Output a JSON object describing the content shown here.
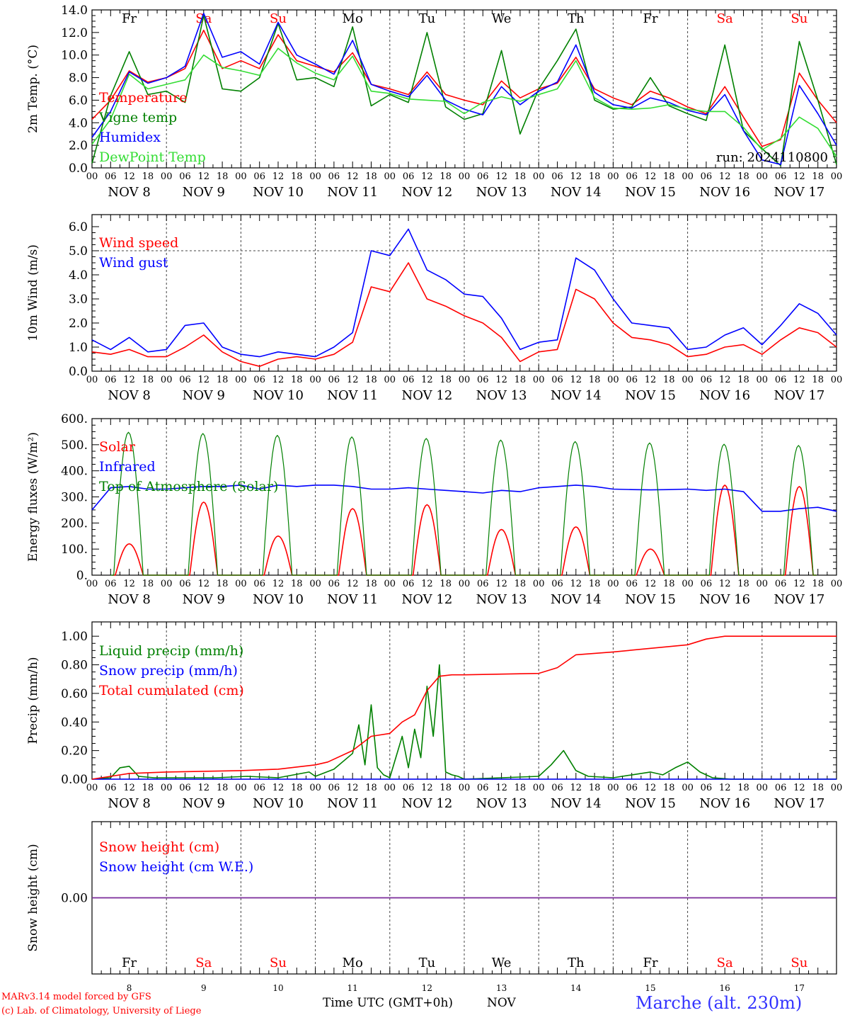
{
  "colors": {
    "red": "#ff0000",
    "darkgreen": "#008000",
    "blue": "#0000ff",
    "lightgreen": "#33dd33",
    "grid": "#444444",
    "axis": "#000000",
    "snowline": "#7a2a9a"
  },
  "time_axis": {
    "hour_labels": [
      "00",
      "06",
      "12",
      "18"
    ],
    "day_labels": [
      "NOV  8",
      "NOV  9",
      "NOV 10",
      "NOV 11",
      "NOV 12",
      "NOV 13",
      "NOV 14",
      "NOV 15",
      "NOV 16",
      "NOV 17"
    ],
    "weekdays": [
      "Fr",
      "Sa",
      "Su",
      "Mo",
      "Tu",
      "We",
      "Th",
      "Fr",
      "Sa",
      "Su"
    ],
    "weekend": [
      false,
      true,
      true,
      false,
      false,
      false,
      false,
      false,
      true,
      true
    ],
    "day_numbers": [
      "8",
      "9",
      "10",
      "11",
      "12",
      "13",
      "14",
      "15",
      "16",
      "17"
    ],
    "xlabel": "Time UTC (GMT+0h)",
    "month": "NOV"
  },
  "chart_data": [
    {
      "type": "line",
      "ylabel": "2m Temp. (°C)",
      "ylim": [
        0,
        14
      ],
      "yticks": [
        "0.0",
        "2.0",
        "4.0",
        "6.0",
        "8.0",
        "10.0",
        "12.0",
        "14.0"
      ],
      "show_weekdays": true,
      "run_label": "run: 2024110800",
      "series": [
        {
          "name": "Temperature",
          "color": "red",
          "hours": [
            0,
            6,
            12,
            18,
            24,
            30,
            36,
            42,
            48,
            54,
            60,
            66,
            72,
            78,
            84,
            90,
            96,
            102,
            108,
            114,
            120,
            126,
            132,
            138,
            144,
            150,
            156,
            162,
            168,
            174,
            180,
            186,
            192,
            198,
            204,
            210,
            216,
            222,
            228,
            234,
            240
          ],
          "values": [
            4.3,
            6.0,
            8.6,
            7.6,
            8.0,
            8.8,
            12.2,
            8.8,
            9.5,
            8.8,
            11.8,
            9.5,
            9.0,
            8.5,
            10.2,
            7.4,
            7.0,
            6.5,
            8.5,
            6.5,
            6.0,
            5.6,
            7.7,
            6.2,
            7.0,
            7.5,
            9.8,
            7.0,
            6.2,
            5.6,
            6.8,
            6.2,
            5.4,
            4.8,
            7.2,
            4.5,
            1.9,
            2.5,
            8.4,
            6.0,
            4.0
          ]
        },
        {
          "name": "Vigne temp",
          "color": "darkgreen",
          "hours": [
            0,
            6,
            12,
            18,
            24,
            30,
            36,
            42,
            48,
            54,
            60,
            66,
            72,
            78,
            84,
            90,
            96,
            102,
            108,
            114,
            120,
            126,
            132,
            138,
            144,
            150,
            156,
            162,
            168,
            174,
            180,
            186,
            192,
            198,
            204,
            210,
            216,
            222,
            228,
            234,
            240
          ],
          "values": [
            0.4,
            6.4,
            10.3,
            6.5,
            6.8,
            5.8,
            13.5,
            7.0,
            6.8,
            8.0,
            12.8,
            7.8,
            8.0,
            7.2,
            12.5,
            5.5,
            6.5,
            5.8,
            12.0,
            5.4,
            4.3,
            4.8,
            10.4,
            3.0,
            7.0,
            9.5,
            12.3,
            6.0,
            5.2,
            5.4,
            8.0,
            5.5,
            4.8,
            4.2,
            10.9,
            3.3,
            1.7,
            0.2,
            11.2,
            6.0,
            0.3
          ]
        },
        {
          "name": "Humidex",
          "color": "blue",
          "hours": [
            0,
            6,
            12,
            18,
            24,
            30,
            36,
            42,
            48,
            54,
            60,
            66,
            72,
            78,
            84,
            90,
            96,
            102,
            108,
            114,
            120,
            126,
            132,
            138,
            144,
            150,
            156,
            162,
            168,
            174,
            180,
            186,
            192,
            198,
            204,
            210,
            216,
            222,
            228,
            234,
            240
          ],
          "values": [
            2.7,
            5.0,
            8.5,
            7.5,
            8.0,
            9.0,
            13.7,
            9.8,
            10.3,
            9.2,
            12.9,
            10.0,
            9.2,
            8.3,
            11.3,
            7.4,
            6.8,
            6.3,
            8.2,
            6.0,
            5.2,
            4.7,
            7.2,
            5.6,
            6.8,
            7.6,
            10.9,
            6.7,
            5.6,
            5.3,
            6.2,
            5.8,
            5.1,
            4.7,
            6.5,
            3.3,
            0.7,
            0.3,
            7.3,
            4.8,
            2.0
          ]
        },
        {
          "name": "DewPoint Temp",
          "color": "lightgreen",
          "hours": [
            0,
            6,
            12,
            18,
            24,
            30,
            36,
            42,
            48,
            54,
            60,
            66,
            72,
            78,
            84,
            90,
            96,
            102,
            108,
            114,
            120,
            126,
            132,
            138,
            144,
            150,
            156,
            162,
            168,
            174,
            180,
            186,
            192,
            198,
            204,
            210,
            216,
            222,
            228,
            234,
            240
          ],
          "values": [
            2.1,
            4.3,
            8.3,
            7.0,
            7.4,
            7.8,
            10.0,
            8.9,
            8.6,
            8.2,
            10.6,
            9.3,
            8.4,
            7.8,
            9.9,
            6.8,
            6.6,
            6.1,
            6.0,
            5.9,
            4.8,
            5.8,
            6.3,
            5.9,
            6.5,
            7.0,
            9.5,
            6.2,
            5.3,
            5.2,
            5.3,
            5.6,
            5.2,
            5.0,
            5.0,
            3.6,
            1.6,
            2.6,
            4.5,
            3.5,
            1.0
          ]
        }
      ]
    },
    {
      "type": "line",
      "ylabel": "10m Wind (m/s)",
      "ylim": [
        0,
        6.5
      ],
      "ytick_values": [
        0,
        1,
        2,
        3,
        4,
        5,
        6
      ],
      "yticks": [
        "0.0",
        "1.0",
        "2.0",
        "3.0",
        "4.0",
        "5.0",
        "6.0"
      ],
      "reference_line": 5.0,
      "series": [
        {
          "name": "Wind speed",
          "color": "red",
          "hours": [
            0,
            6,
            12,
            18,
            24,
            30,
            36,
            42,
            48,
            54,
            60,
            66,
            72,
            78,
            84,
            90,
            96,
            102,
            108,
            114,
            120,
            126,
            132,
            138,
            144,
            150,
            156,
            162,
            168,
            174,
            180,
            186,
            192,
            198,
            204,
            210,
            216,
            222,
            228,
            234,
            240
          ],
          "values": [
            0.8,
            0.7,
            0.9,
            0.6,
            0.6,
            1.0,
            1.5,
            0.8,
            0.4,
            0.2,
            0.5,
            0.6,
            0.5,
            0.7,
            1.2,
            3.5,
            3.3,
            4.5,
            3.0,
            2.7,
            2.3,
            2.0,
            1.4,
            0.4,
            0.8,
            0.9,
            3.4,
            3.0,
            2.0,
            1.4,
            1.3,
            1.1,
            0.6,
            0.7,
            1.0,
            1.1,
            0.7,
            1.3,
            1.8,
            1.6,
            1.0
          ]
        },
        {
          "name": "Wind gust",
          "color": "blue",
          "hours": [
            0,
            6,
            12,
            18,
            24,
            30,
            36,
            42,
            48,
            54,
            60,
            66,
            72,
            78,
            84,
            90,
            96,
            102,
            108,
            114,
            120,
            126,
            132,
            138,
            144,
            150,
            156,
            162,
            168,
            174,
            180,
            186,
            192,
            198,
            204,
            210,
            216,
            222,
            228,
            234,
            240
          ],
          "values": [
            1.3,
            0.9,
            1.4,
            0.8,
            0.9,
            1.9,
            2.0,
            1.0,
            0.7,
            0.6,
            0.8,
            0.7,
            0.6,
            1.0,
            1.6,
            5.0,
            4.8,
            5.9,
            4.2,
            3.8,
            3.2,
            3.1,
            2.2,
            0.9,
            1.2,
            1.3,
            4.7,
            4.2,
            3.0,
            2.0,
            1.9,
            1.8,
            0.9,
            1.0,
            1.5,
            1.8,
            1.1,
            1.9,
            2.8,
            2.4,
            1.5
          ]
        }
      ]
    },
    {
      "type": "line",
      "ylabel": "Energy fluxes (W/m²)",
      "ylim": [
        0,
        600
      ],
      "ytick_values": [
        0,
        100,
        200,
        300,
        400,
        500,
        600
      ],
      "yticks": [
        "0.",
        "100.",
        "200.",
        "300.",
        "400.",
        "500.",
        "600."
      ],
      "series": [
        {
          "name": "Solar",
          "color": "red",
          "daylight": [
            7.5,
            16.5
          ],
          "daily_peaks": [
            120,
            280,
            150,
            255,
            270,
            175,
            185,
            100,
            345,
            340
          ]
        },
        {
          "name": "Infrared",
          "color": "blue",
          "hours": [
            0,
            6,
            12,
            18,
            24,
            30,
            36,
            42,
            48,
            54,
            60,
            66,
            72,
            78,
            84,
            90,
            96,
            102,
            108,
            114,
            120,
            126,
            132,
            138,
            144,
            150,
            156,
            162,
            168,
            174,
            180,
            186,
            192,
            198,
            204,
            210,
            216,
            222,
            228,
            234,
            240
          ],
          "values": [
            250,
            335,
            340,
            330,
            330,
            335,
            340,
            340,
            345,
            330,
            345,
            340,
            345,
            345,
            340,
            330,
            330,
            335,
            330,
            325,
            320,
            315,
            325,
            320,
            335,
            340,
            345,
            340,
            330,
            328,
            327,
            328,
            330,
            325,
            330,
            320,
            245,
            245,
            255,
            260,
            245
          ]
        },
        {
          "name": "Top of Atmosphere (Solar)",
          "color": "darkgreen",
          "daylight": [
            7.0,
            16.5
          ],
          "daily_peaks": [
            548,
            543,
            536,
            530,
            524,
            518,
            512,
            507,
            502,
            497
          ]
        }
      ]
    },
    {
      "type": "line",
      "ylabel": "Precip (mm/h)",
      "ylim": [
        0,
        1.1
      ],
      "ytick_values": [
        0,
        0.2,
        0.4,
        0.6,
        0.8,
        1.0
      ],
      "yticks": [
        "0.00",
        "0.20",
        "0.40",
        "0.60",
        "0.80",
        "1.00"
      ],
      "series": [
        {
          "name": "Liquid precip (mm/h)",
          "color": "darkgreen",
          "hours": [
            0,
            6,
            9,
            12,
            15,
            20,
            30,
            40,
            50,
            60,
            70,
            72,
            78,
            84,
            86,
            88,
            90,
            92,
            94,
            96,
            100,
            102,
            104,
            106,
            108,
            110,
            112,
            114,
            116,
            118,
            120,
            144,
            148,
            152,
            156,
            160,
            168,
            180,
            184,
            188,
            192,
            196,
            200,
            206,
            240
          ],
          "values": [
            0,
            0.01,
            0.08,
            0.09,
            0.02,
            0.01,
            0.01,
            0.01,
            0.02,
            0.01,
            0.05,
            0.02,
            0.07,
            0.18,
            0.38,
            0.1,
            0.52,
            0.08,
            0.03,
            0.01,
            0.3,
            0.08,
            0.35,
            0.15,
            0.65,
            0.3,
            0.8,
            0.05,
            0.03,
            0.02,
            0,
            0.02,
            0.1,
            0.2,
            0.06,
            0.02,
            0.01,
            0.05,
            0.03,
            0.08,
            0.12,
            0.05,
            0.01,
            0,
            0
          ]
        },
        {
          "name": "Snow precip (mm/h)",
          "color": "blue",
          "hours": [
            0,
            240
          ],
          "values": [
            0,
            0
          ]
        },
        {
          "name": "Total cumulated (cm)",
          "color": "red",
          "hours": [
            0,
            6,
            12,
            24,
            48,
            60,
            72,
            76,
            84,
            90,
            96,
            100,
            104,
            108,
            112,
            116,
            120,
            144,
            150,
            156,
            168,
            192,
            198,
            204,
            240
          ],
          "values": [
            0,
            0.02,
            0.04,
            0.05,
            0.06,
            0.07,
            0.1,
            0.12,
            0.2,
            0.3,
            0.32,
            0.4,
            0.45,
            0.62,
            0.72,
            0.73,
            0.73,
            0.74,
            0.78,
            0.87,
            0.89,
            0.94,
            0.98,
            1.0,
            1.0
          ]
        }
      ]
    },
    {
      "type": "line",
      "ylabel": "Snow height (cm)",
      "ylim": [
        -1,
        1
      ],
      "yticks": [
        "0.00"
      ],
      "show_bottom_weekdays": true,
      "series": [
        {
          "name": "Snow height (cm)",
          "color": "red",
          "hours": [
            0,
            240
          ],
          "values": [
            0,
            0
          ]
        },
        {
          "name": "Snow height (cm W.E.)",
          "color": "blue",
          "hours": [
            0,
            240
          ],
          "values": [
            0,
            0
          ]
        }
      ]
    }
  ],
  "footer": {
    "model": "MARv3.14 model forced by GFS",
    "lab": "(c) Lab. of Climatology, University of Liege",
    "station": "Marche (alt. 230m)"
  }
}
